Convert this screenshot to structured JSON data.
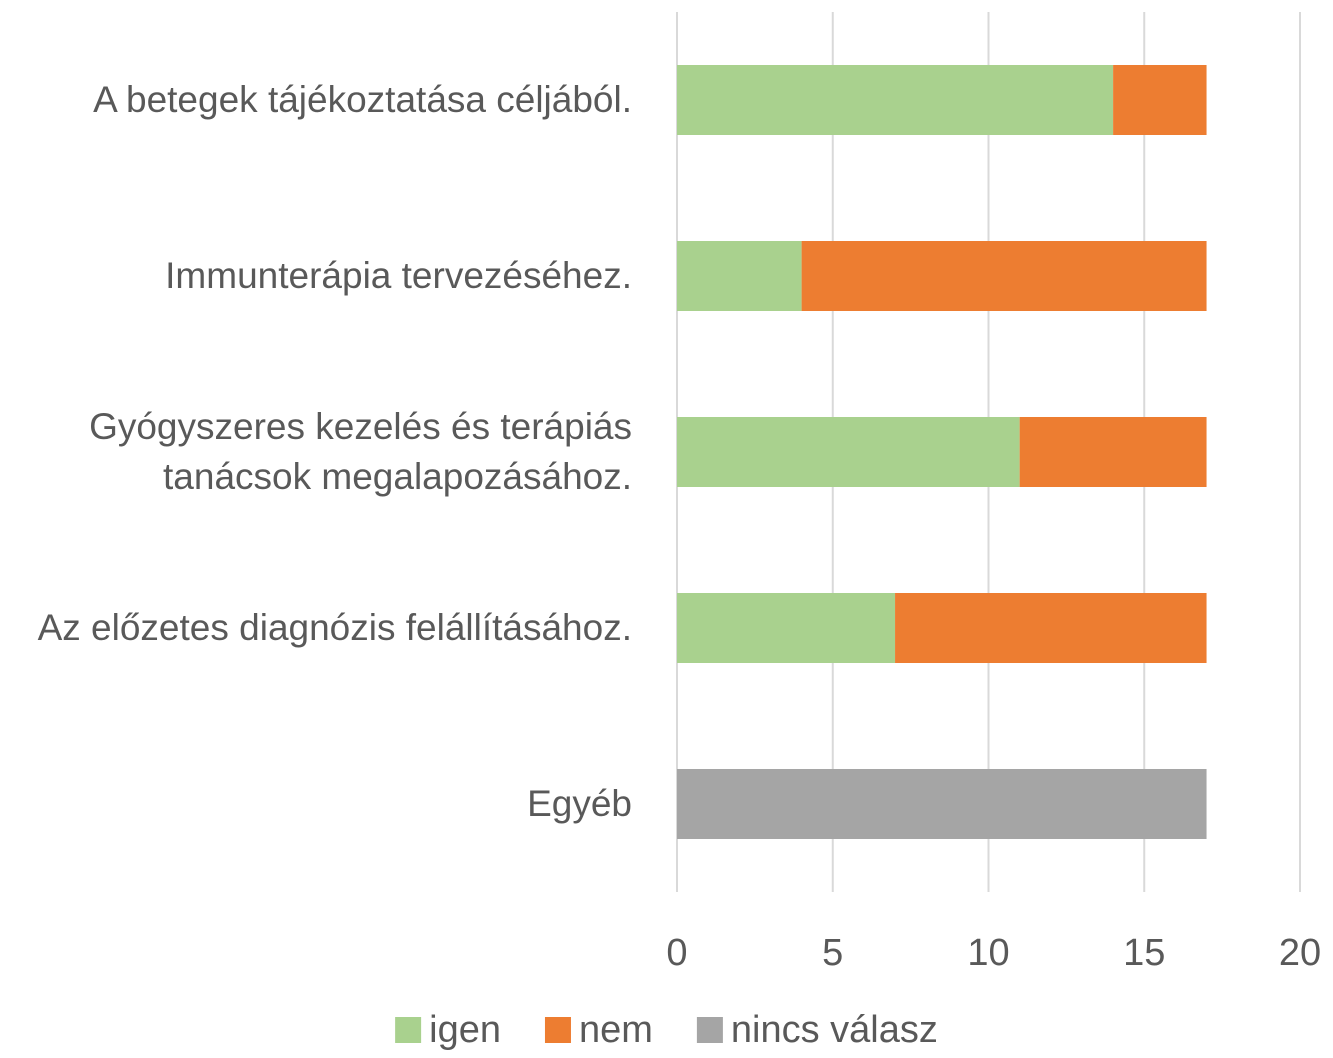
{
  "chart_data": {
    "type": "stacked-barh",
    "categories": [
      "A betegek tájékoztatása céljából.",
      "Immunterápia tervezéséhez.",
      "Gyógyszeres kezelés és terápiás tanácsok megalapozásához.",
      "Az előzetes diagnózis felállításához.",
      "Egyéb"
    ],
    "series": [
      {
        "name": "igen",
        "color": "#a9d18e",
        "values": [
          14,
          4,
          11,
          7,
          0
        ]
      },
      {
        "name": "nem",
        "color": "#ed7d31",
        "values": [
          3,
          13,
          6,
          10,
          0
        ]
      },
      {
        "name": "nincs válasz",
        "color": "#a5a5a5",
        "values": [
          0,
          0,
          0,
          0,
          17
        ]
      }
    ],
    "xlim": [
      0,
      20
    ],
    "xticks": [
      0,
      5,
      10,
      15,
      20
    ],
    "grid": true,
    "legend": "bottom"
  }
}
